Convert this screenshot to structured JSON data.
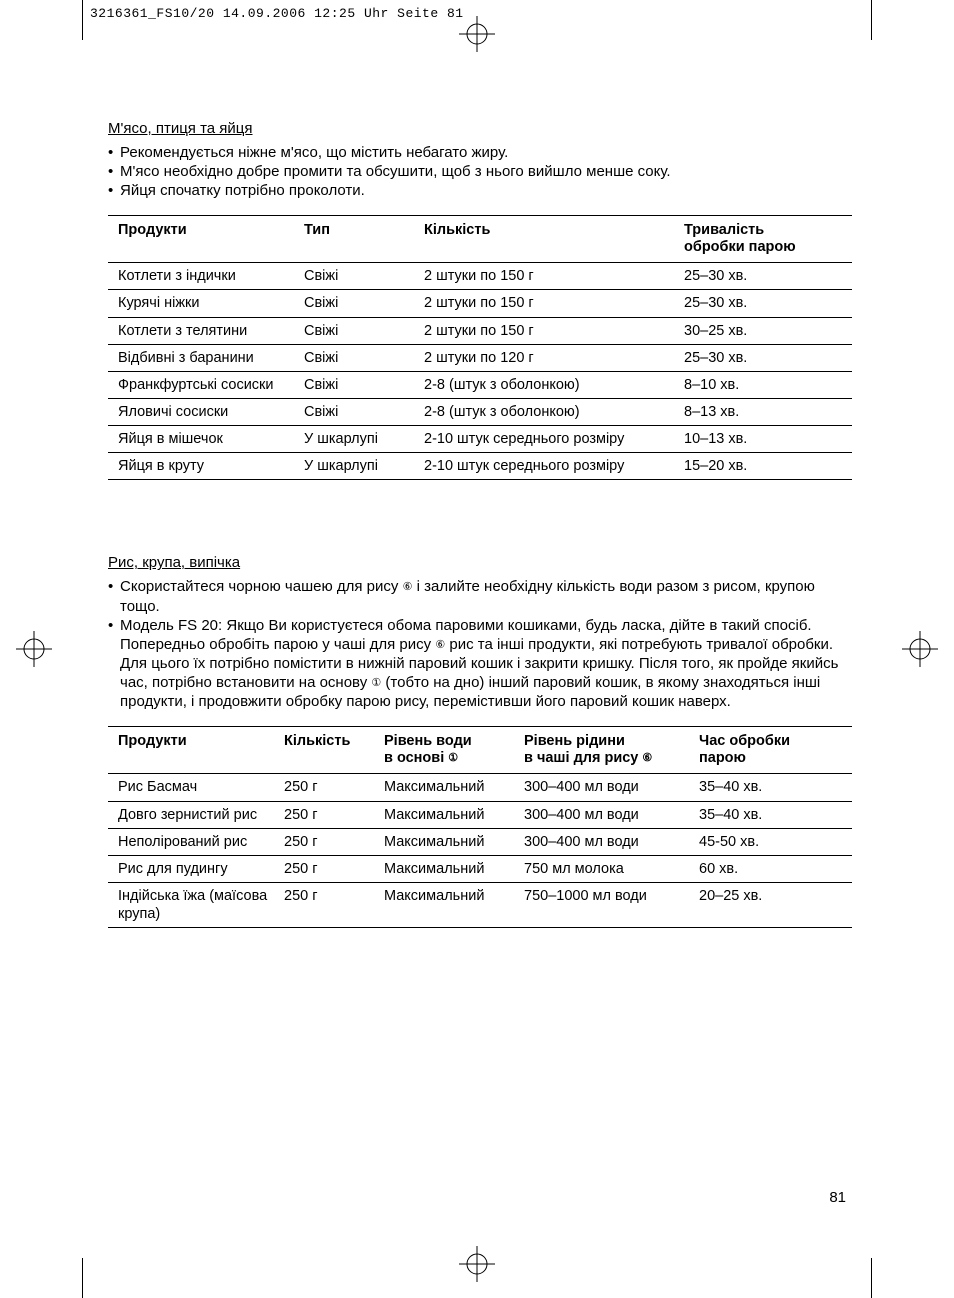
{
  "header": {
    "crop_text": "3216361_FS10/20  14.09.2006  12:25 Uhr  Seite 81"
  },
  "page_number": "81",
  "circled_refs": {
    "one": "①",
    "six": "⑥"
  },
  "section1": {
    "title": "М'ясо, птиця та яйця",
    "bullets": [
      "Рекомендується ніжне м'ясо, що містить небагато жиру.",
      "М'ясо необхідно добре промити та обсушити, щоб з нього вийшло менше соку.",
      "Яйця спочатку потрібно проколоти."
    ],
    "table": {
      "headers": {
        "c1": "Продукти",
        "c2": "Тип",
        "c3": "Кількість",
        "c4_line1": "Тривалість",
        "c4_line2": "обробки парою"
      },
      "rows": [
        {
          "c1": "Котлети з індички",
          "c2": "Свіжі",
          "c3": "2 штуки по 150 г",
          "c4": "25–30 хв."
        },
        {
          "c1": "Курячі ніжки",
          "c2": "Свіжі",
          "c3": "2 штуки по 150 г",
          "c4": "25–30 хв."
        },
        {
          "c1": "Котлети з телятини",
          "c2": "Свіжі",
          "c3": "2 штуки по 150 г",
          "c4": "30–25 хв."
        },
        {
          "c1": "Відбивні з баранини",
          "c2": "Свіжі",
          "c3": "2 штуки по 120 г",
          "c4": "25–30 хв."
        },
        {
          "c1": "Франкфуртські сосиски",
          "c2": "Свіжі",
          "c3": "2-8 (штук з оболонкою)",
          "c4": "8–10 хв."
        },
        {
          "c1": "Яловичі сосиски",
          "c2": "Свіжі",
          "c3": "2-8 (штук з оболонкою)",
          "c4": "8–13 хв."
        },
        {
          "c1": "Яйця в мішечок",
          "c2": "У шкарлупі",
          "c3": "2-10 штук середнього розміру",
          "c4": "10–13 хв."
        },
        {
          "c1": "Яйця в круту",
          "c2": "У шкарлупі",
          "c3": "2-10 штук середнього розміру",
          "c4": "15–20 хв."
        }
      ]
    }
  },
  "section2": {
    "title": "Рис, крупа, випічка",
    "bullet1_pre": "Скористайтеся чорною чашею для рису ",
    "bullet1_post": " і залийте необхідну кількість води разом з рисом, крупою тощо.",
    "bullet2_pre": "Модель FS 20: Якщо Ви користуєтеся обома паровими кошиками, будь ласка, дійте в такий спосіб. Попередньо обробіть парою у чаші для рису ",
    "bullet2_mid": " рис та інші продукти, які потребують тривалої обробки. Для цього їх потрібно помістити в нижній паровий кошик і закрити кришку. Після того, як пройде якийсь час, потрібно встановити на основу ",
    "bullet2_post": " (тобто на дно) інший паровий кошик, в якому знаходяться інші продукти, і продовжити обробку парою рису, перемістивши його паровий кошик наверх.",
    "table": {
      "headers": {
        "c1": "Продукти",
        "c2": "Кількість",
        "c3_line1": "Рівень води",
        "c3_line2_pre": "в основі ",
        "c4_line1": "Рівень рідини",
        "c4_line2_pre": "в чаші для рису ",
        "c5_line1": "Час обробки",
        "c5_line2": "парою"
      },
      "rows": [
        {
          "c1": "Рис Басмач",
          "c2": "250 г",
          "c3": "Максимальний",
          "c4": "300–400 мл води",
          "c5": "35–40 хв."
        },
        {
          "c1": "Довго зернистий рис",
          "c2": "250 г",
          "c3": "Максимальний",
          "c4": "300–400 мл води",
          "c5": "35–40 хв."
        },
        {
          "c1": "Неполірований рис",
          "c2": "250 г",
          "c3": "Максимальний",
          "c4": "300–400 мл води",
          "c5": "45-50 хв."
        },
        {
          "c1": "Рис для пудингу",
          "c2": "250 г",
          "c3": "Максимальний",
          "c4": "750 мл молока",
          "c5": "60 хв."
        },
        {
          "c1": "Індійська їжа (маїсова крупа)",
          "c2": "250 г",
          "c3": "Максимальний",
          "c4": "750–1000 мл води",
          "c5": "20–25 хв."
        }
      ]
    }
  }
}
